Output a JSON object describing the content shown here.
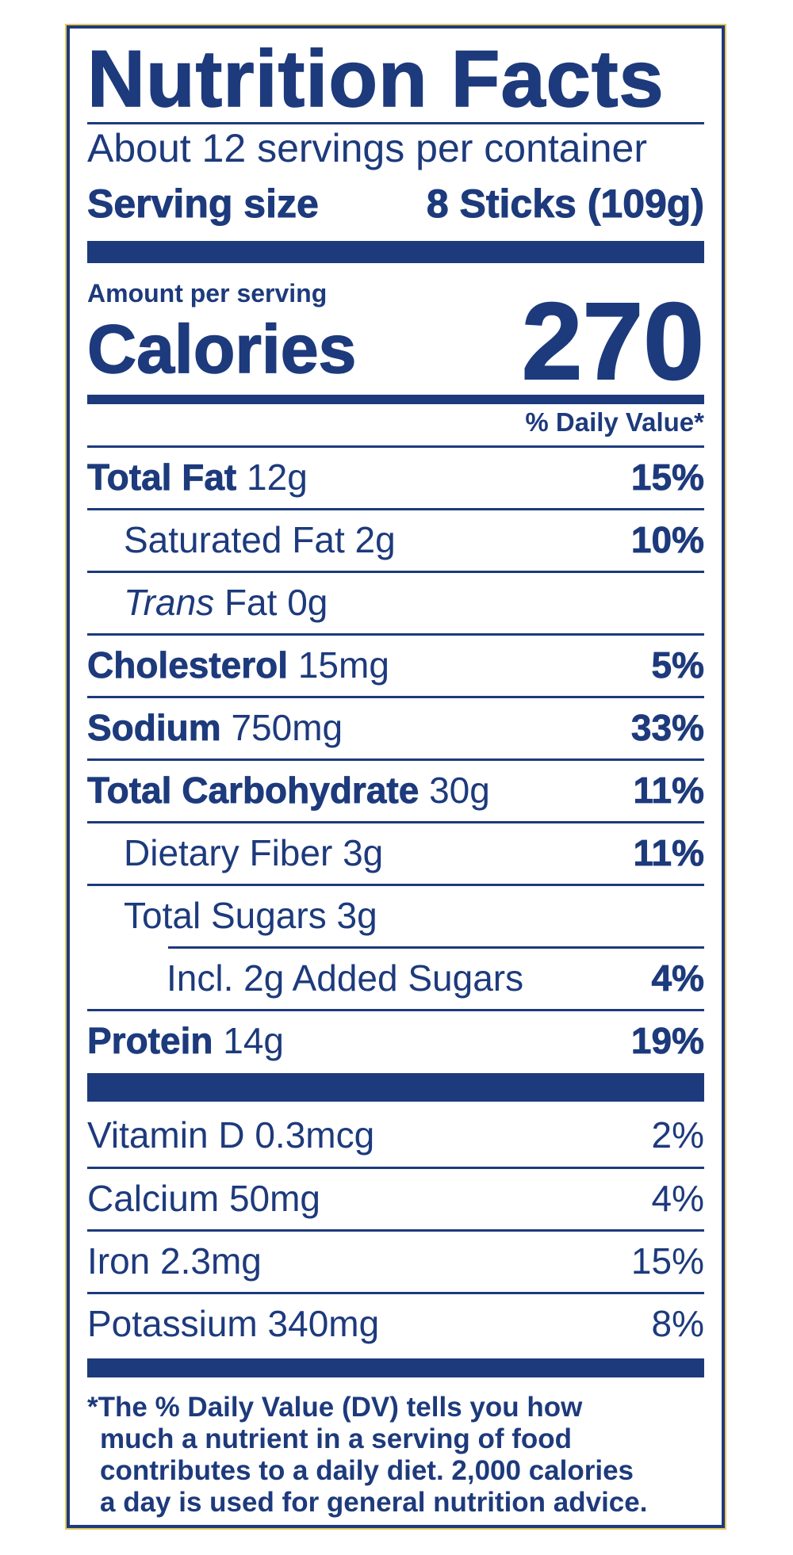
{
  "label": {
    "title": "Nutrition Facts",
    "servings_per_container": "About 12 servings per container",
    "serving_size_label": "Serving size",
    "serving_size_value": "8 Sticks (109g)",
    "amount_per_serving": "Amount per serving",
    "calories_label": "Calories",
    "calories_value": "270",
    "daily_value_header": "% Daily Value*",
    "nutrients": [
      {
        "name": "Total Fat",
        "amount": "12g",
        "dv": "15%"
      },
      {
        "name": "Saturated Fat",
        "amount": "2g",
        "dv": "10%"
      },
      {
        "name": "Trans",
        "suffix": "Fat",
        "amount": "0g",
        "dv": ""
      },
      {
        "name": "Cholesterol",
        "amount": "15mg",
        "dv": "5%"
      },
      {
        "name": "Sodium",
        "amount": "750mg",
        "dv": "33%"
      },
      {
        "name": "Total Carbohydrate",
        "amount": "30g",
        "dv": "11%"
      },
      {
        "name": "Dietary Fiber",
        "amount": "3g",
        "dv": "11%"
      },
      {
        "name": "Total Sugars",
        "amount": "3g",
        "dv": ""
      },
      {
        "name": "Incl. 2g Added Sugars",
        "amount": "",
        "dv": "4%"
      },
      {
        "name": "Protein",
        "amount": "14g",
        "dv": "19%"
      }
    ],
    "vitamins": [
      {
        "name": "Vitamin D",
        "amount": "0.3mcg",
        "dv": "2%"
      },
      {
        "name": "Calcium",
        "amount": "50mg",
        "dv": "4%"
      },
      {
        "name": "Iron",
        "amount": "2.3mg",
        "dv": "15%"
      },
      {
        "name": "Potassium",
        "amount": "340mg",
        "dv": "8%"
      }
    ],
    "footnote_lines": [
      "*The % Daily Value (DV) tells you how",
      "much a nutrient in a serving of food",
      "contributes to a daily diet. 2,000 calories",
      "a day is used for general nutrition advice."
    ]
  },
  "colors": {
    "ink": "#1d3a7c",
    "border_accent": "#e5c85c",
    "background": "#ffffff"
  }
}
